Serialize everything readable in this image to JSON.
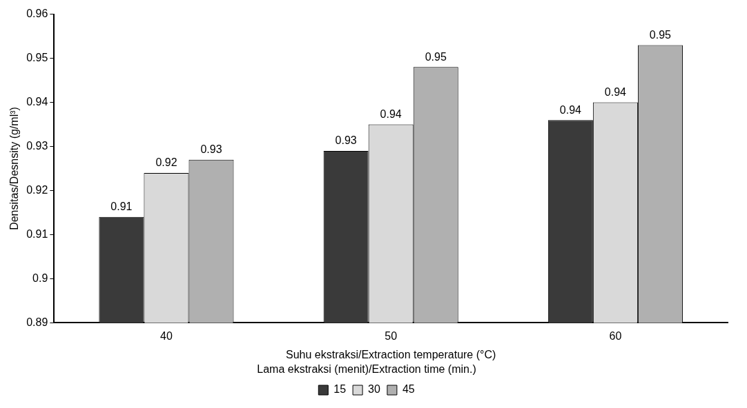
{
  "chart_data": {
    "type": "bar",
    "xlabel": "Suhu ekstraksi/Extraction temperature (°C)",
    "ylabel": "Densitas/Desnsity (g/ml³)",
    "legend_title": "Lama ekstraksi (menit)/Extraction time (min.)",
    "categories": [
      "40",
      "50",
      "60"
    ],
    "series": [
      {
        "name": "15",
        "color": "#3a3a3a",
        "values": [
          0.914,
          0.929,
          0.936
        ],
        "value_labels": [
          "0.91",
          "0.93",
          "0.94"
        ]
      },
      {
        "name": "30",
        "color": "#d9d9d9",
        "values": [
          0.924,
          0.935,
          0.94
        ],
        "value_labels": [
          "0.92",
          "0.94",
          "0.94"
        ]
      },
      {
        "name": "45",
        "color": "#b0b0b0",
        "values": [
          0.927,
          0.948,
          0.953
        ],
        "value_labels": [
          "0.93",
          "0.95",
          "0.95"
        ]
      }
    ],
    "ylim": [
      0.89,
      0.96
    ],
    "yticks": [
      0.89,
      0.9,
      0.91,
      0.92,
      0.93,
      0.94,
      0.95,
      0.96
    ],
    "grid": false,
    "legend": "bottom"
  }
}
